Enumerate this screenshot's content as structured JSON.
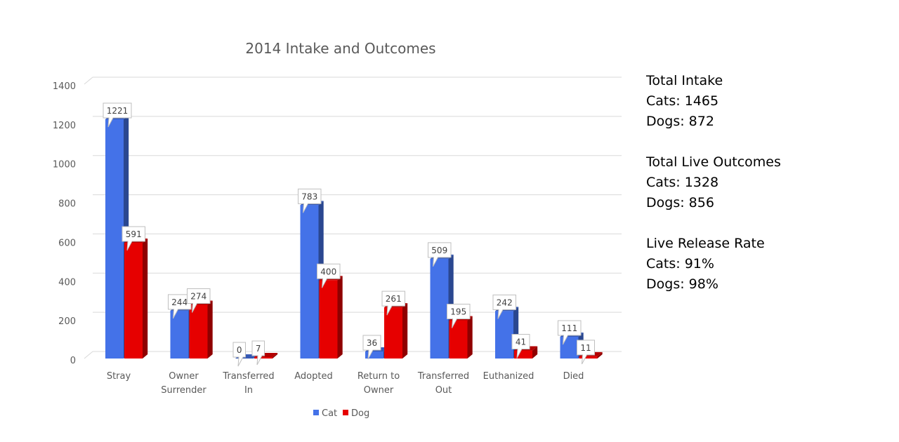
{
  "chart_data": {
    "type": "bar",
    "title": "2014 Intake and Outcomes",
    "categories": [
      [
        "Stray"
      ],
      [
        "Owner",
        "Surrender"
      ],
      [
        "Transferred",
        "In"
      ],
      [
        "Adopted"
      ],
      [
        "Return to",
        "Owner"
      ],
      [
        "Transferred",
        "Out"
      ],
      [
        "Euthanized"
      ],
      [
        "Died"
      ]
    ],
    "series": [
      {
        "name": "Cat",
        "values": [
          1221,
          244,
          0,
          783,
          36,
          509,
          242,
          111
        ],
        "color": "#4472e8"
      },
      {
        "name": "Dog",
        "values": [
          591,
          274,
          7,
          400,
          261,
          195,
          41,
          11
        ],
        "color": "#e60000"
      }
    ],
    "ylim": [
      0,
      1400
    ],
    "yticks": [
      0,
      200,
      400,
      600,
      800,
      1000,
      1200,
      1400
    ],
    "grid": true,
    "legend": "bottom"
  },
  "stats": [
    {
      "heading": "Total Intake",
      "lines": [
        "Cats: 1465",
        "Dogs: 872"
      ]
    },
    {
      "heading": "Total Live Outcomes",
      "lines": [
        "Cats: 1328",
        "Dogs: 856"
      ]
    },
    {
      "heading": "Live Release Rate",
      "lines": [
        "Cats: 91%",
        "Dogs: 98%"
      ]
    }
  ]
}
